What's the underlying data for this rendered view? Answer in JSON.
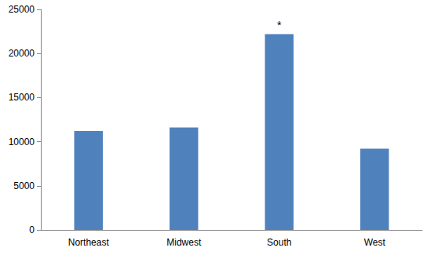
{
  "chart_data": {
    "type": "bar",
    "categories": [
      "Northeast",
      "Midwest",
      "South",
      "West"
    ],
    "values": [
      11200,
      11600,
      22200,
      9200
    ],
    "color": "#4f81bd",
    "ylim": [
      0,
      25000
    ],
    "yticks": [
      0,
      5000,
      10000,
      15000,
      20000,
      25000
    ],
    "grid": false,
    "annotations": [
      {
        "category": "South",
        "text": "*"
      }
    ]
  }
}
